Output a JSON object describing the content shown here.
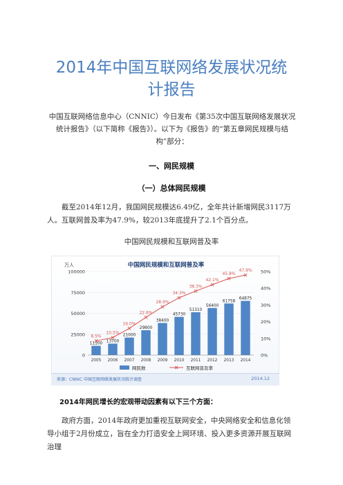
{
  "doc": {
    "title_line1": "2014年中国互联网络发展状况统",
    "title_line2": "计报告",
    "intro": "中国互联网络信息中心（CNNIC）今日发布《第35次中国互联网络发展状况统计报告》（以下简称《报告》）。以下为《报告》的“第五章网民规模与结构”部分：",
    "heading1": "一、网民规模",
    "heading2": "（一）总体网民规模",
    "para1": "截至2014年12月，我国网民规模达6.49亿，全年共计新增网民3117万人。互联网普及率为47.9%，较2013年底提升了2.1个百分点。",
    "caption": "中国网民规模和互联网普及率",
    "heading3": "2014年网民增长的宏观带动因素有以下三个方面：",
    "para2": "政府方面，2014年政府更加重视互联网安全，中央网络安全和信息化领导小组于2月份成立，旨在全力打造安全上网环境、投入更多资源开展互联网治理"
  },
  "chart_data": {
    "type": "bar",
    "title": "中国网民规模和互联网普及率",
    "y_unit": "万人",
    "categories": [
      "2005",
      "2006",
      "2007",
      "2008",
      "2009",
      "2010",
      "2011",
      "2012",
      "2013",
      "2014"
    ],
    "series": [
      {
        "name": "网民数",
        "type": "bar",
        "values": [
          11100,
          13700,
          21000,
          29800,
          38400,
          45730,
          51310,
          56400,
          61758,
          64875
        ],
        "labels": [
          "11100",
          "13700",
          "21000",
          "29800",
          "38400",
          "45730",
          "51310",
          "56400",
          "61758",
          "64875"
        ],
        "color": "#4f86c6"
      },
      {
        "name": "互联网普及率",
        "type": "line",
        "values": [
          8.5,
          10.5,
          16.0,
          22.6,
          28.9,
          34.3,
          38.3,
          42.1,
          45.8,
          47.9
        ],
        "labels": [
          "8.5%",
          "10.5%",
          "16.0%",
          "22.6%",
          "28.9%",
          "34.3%",
          "38.3%",
          "42.1%",
          "45.8%",
          "47.9%"
        ],
        "color": "#d9534f"
      }
    ],
    "y_left": {
      "ticks": [
        "0",
        "25000",
        "50000",
        "75000",
        "100000"
      ],
      "range": [
        0,
        100000
      ]
    },
    "y_right": {
      "ticks": [
        "0%",
        "10%",
        "20%",
        "30%",
        "40%",
        "50%"
      ],
      "range": [
        0,
        50
      ]
    },
    "legend": "bottom",
    "source": "来源：CNNIC 中国互联网络发展状况统计调查",
    "date": "2014.12"
  }
}
